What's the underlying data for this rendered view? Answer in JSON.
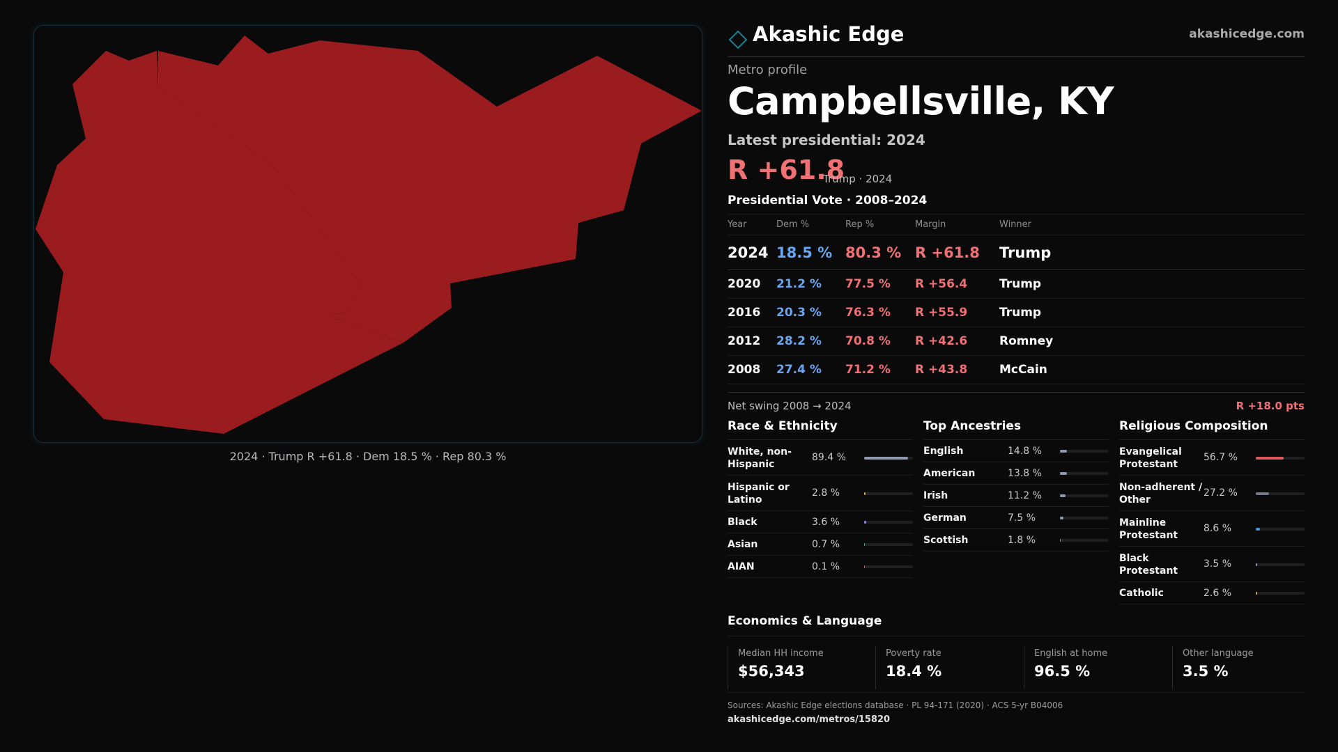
{
  "map": {
    "fill_color": "#9b1c1f",
    "caption": "2024 · Trump R +61.8 · Dem 18.5 % · Rep 80.3 %"
  },
  "brand": {
    "name": "Akashic Edge",
    "url": "akashicedge.com",
    "logo_icon": "diamond-outline",
    "accent": "#1c7f94"
  },
  "profile": {
    "label": "Metro profile",
    "title": "Campbellsville, KY",
    "latest_label": "Latest presidential: 2024",
    "latest_margin": "R +61.8",
    "latest_note": "Trump · 2024"
  },
  "presidential": {
    "title": "Presidential Vote · 2008–2024",
    "headers": [
      "Year",
      "Dem %",
      "Rep %",
      "Margin",
      "Winner"
    ],
    "rows": [
      {
        "year": "2024",
        "dem": "18.5 %",
        "rep": "80.3 %",
        "margin": "R +61.8",
        "winner": "Trump"
      },
      {
        "year": "2020",
        "dem": "21.2 %",
        "rep": "77.5 %",
        "margin": "R +56.4",
        "winner": "Trump"
      },
      {
        "year": "2016",
        "dem": "20.3 %",
        "rep": "76.3 %",
        "margin": "R +55.9",
        "winner": "Trump"
      },
      {
        "year": "2012",
        "dem": "28.2 %",
        "rep": "70.8 %",
        "margin": "R +42.6",
        "winner": "Romney"
      },
      {
        "year": "2008",
        "dem": "27.4 %",
        "rep": "71.2 %",
        "margin": "R +43.8",
        "winner": "McCain"
      }
    ],
    "dem_color": "#68a6f2",
    "rep_color": "#f07174"
  },
  "swing": {
    "label": "Net swing 2008 → 2024",
    "value": "R +18.0 pts"
  },
  "race": {
    "title": "Race & Ethnicity",
    "items": [
      {
        "name": "White, non-\nHispanic",
        "value": "89.4 %",
        "pct": 89.4,
        "color": "#8e9bb0"
      },
      {
        "name": "Hispanic or\nLatino",
        "value": "2.8 %",
        "pct": 2.8,
        "color": "#e0a23a"
      },
      {
        "name": "Black",
        "value": "3.6 %",
        "pct": 3.6,
        "color": "#9c83e6"
      },
      {
        "name": "Asian",
        "value": "0.7 %",
        "pct": 0.7,
        "color": "#4fb39a"
      },
      {
        "name": "AIAN",
        "value": "0.1 %",
        "pct": 0.1,
        "color": "#c46b6b"
      }
    ]
  },
  "ancestry": {
    "title": "Top Ancestries",
    "items": [
      {
        "name": "English",
        "value": "14.8 %",
        "pct": 14.8,
        "color": "#8e9bb0"
      },
      {
        "name": "American",
        "value": "13.8 %",
        "pct": 13.8,
        "color": "#8e9bb0"
      },
      {
        "name": "Irish",
        "value": "11.2 %",
        "pct": 11.2,
        "color": "#8e9bb0"
      },
      {
        "name": "German",
        "value": "7.5 %",
        "pct": 7.5,
        "color": "#8e9bb0"
      },
      {
        "name": "Scottish",
        "value": "1.8 %",
        "pct": 1.8,
        "color": "#8e9bb0"
      }
    ]
  },
  "religion": {
    "title": "Religious Composition",
    "items": [
      {
        "name": "Evangelical\nProtestant",
        "value": "56.7 %",
        "pct": 56.7,
        "color": "#e0585c"
      },
      {
        "name": "Non-adherent /\nOther",
        "value": "27.2 %",
        "pct": 27.2,
        "color": "#6f7687"
      },
      {
        "name": "Mainline\nProtestant",
        "value": "8.6 %",
        "pct": 8.6,
        "color": "#4d8fe0"
      },
      {
        "name": "Black\nProtestant",
        "value": "3.5 %",
        "pct": 3.5,
        "color": "#9c83e6"
      },
      {
        "name": "Catholic",
        "value": "2.6 %",
        "pct": 2.6,
        "color": "#e0a23a"
      }
    ]
  },
  "economics": {
    "title": "Economics & Language",
    "items": [
      {
        "label": "Median HH income",
        "value": "$56,343"
      },
      {
        "label": "Poverty rate",
        "value": "18.4 %"
      },
      {
        "label": "English at home",
        "value": "96.5 %"
      },
      {
        "label": "Other language",
        "value": "3.5 %"
      }
    ]
  },
  "footer": {
    "sources": "Sources: Akashic Edge elections database · PL 94-171 (2020) · ACS 5-yr B04006",
    "url": "akashicedge.com/metros/15820"
  }
}
